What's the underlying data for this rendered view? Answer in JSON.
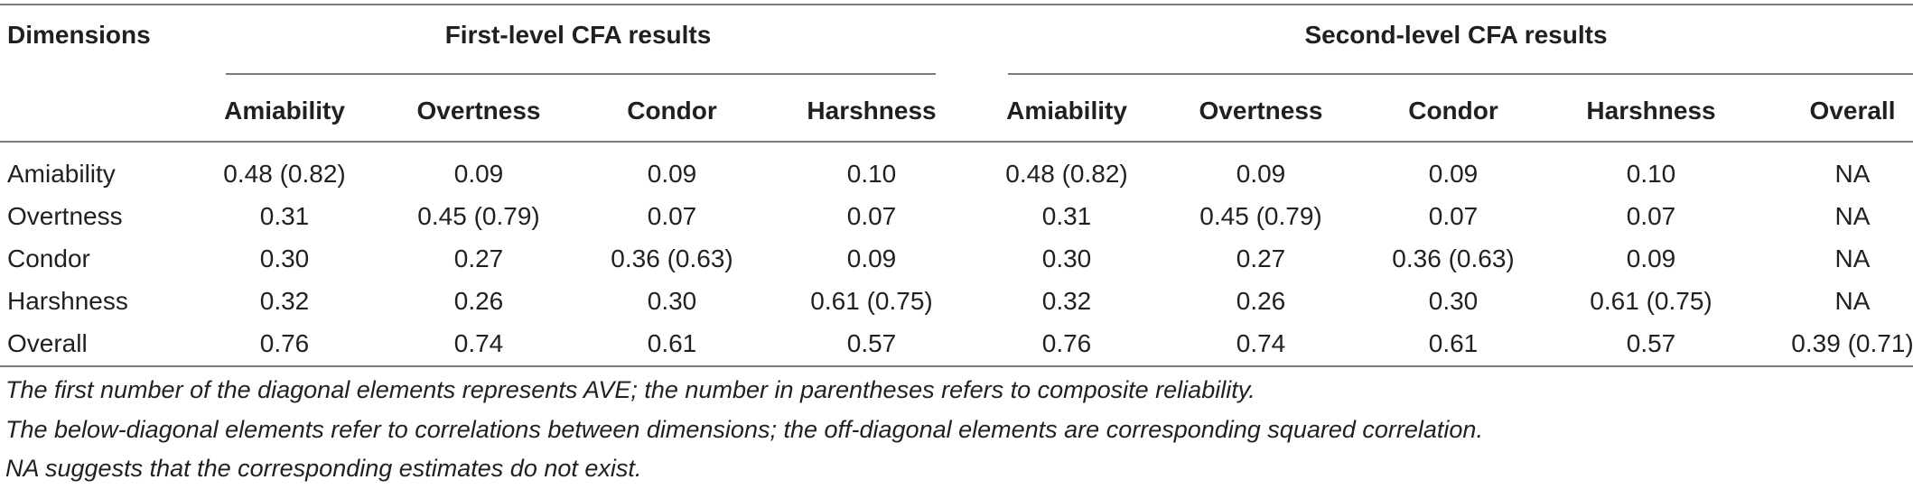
{
  "table": {
    "header": {
      "corner": "Dimensions",
      "group1": "First-level CFA results",
      "group2": "Second-level CFA results",
      "columns": [
        "Amiability",
        "Overtness",
        "Condor",
        "Harshness",
        "Amiability",
        "Overtness",
        "Condor",
        "Harshness",
        "Overall"
      ]
    },
    "rows": [
      {
        "label": "Amiability",
        "cells": [
          "0.48 (0.82)",
          "0.09",
          "0.09",
          "0.10",
          "0.48 (0.82)",
          "0.09",
          "0.09",
          "0.10",
          "NA"
        ]
      },
      {
        "label": "Overtness",
        "cells": [
          "0.31",
          "0.45 (0.79)",
          "0.07",
          "0.07",
          "0.31",
          "0.45 (0.79)",
          "0.07",
          "0.07",
          "NA"
        ]
      },
      {
        "label": "Condor",
        "cells": [
          "0.30",
          "0.27",
          "0.36 (0.63)",
          "0.09",
          "0.30",
          "0.27",
          "0.36 (0.63)",
          "0.09",
          "NA"
        ]
      },
      {
        "label": "Harshness",
        "cells": [
          "0.32",
          "0.26",
          "0.30",
          "0.61 (0.75)",
          "0.32",
          "0.26",
          "0.30",
          "0.61 (0.75)",
          "NA"
        ]
      },
      {
        "label": "Overall",
        "cells": [
          "0.76",
          "0.74",
          "0.61",
          "0.57",
          "0.76",
          "0.74",
          "0.61",
          "0.57",
          "0.39 (0.71)"
        ]
      }
    ]
  },
  "footnotes": [
    "The first number of the diagonal elements represents AVE; the number in parentheses refers to composite reliability.",
    "The below-diagonal elements refer to correlations between dimensions; the off-diagonal elements are corresponding squared correlation.",
    "NA suggests that the corresponding estimates do not exist."
  ]
}
